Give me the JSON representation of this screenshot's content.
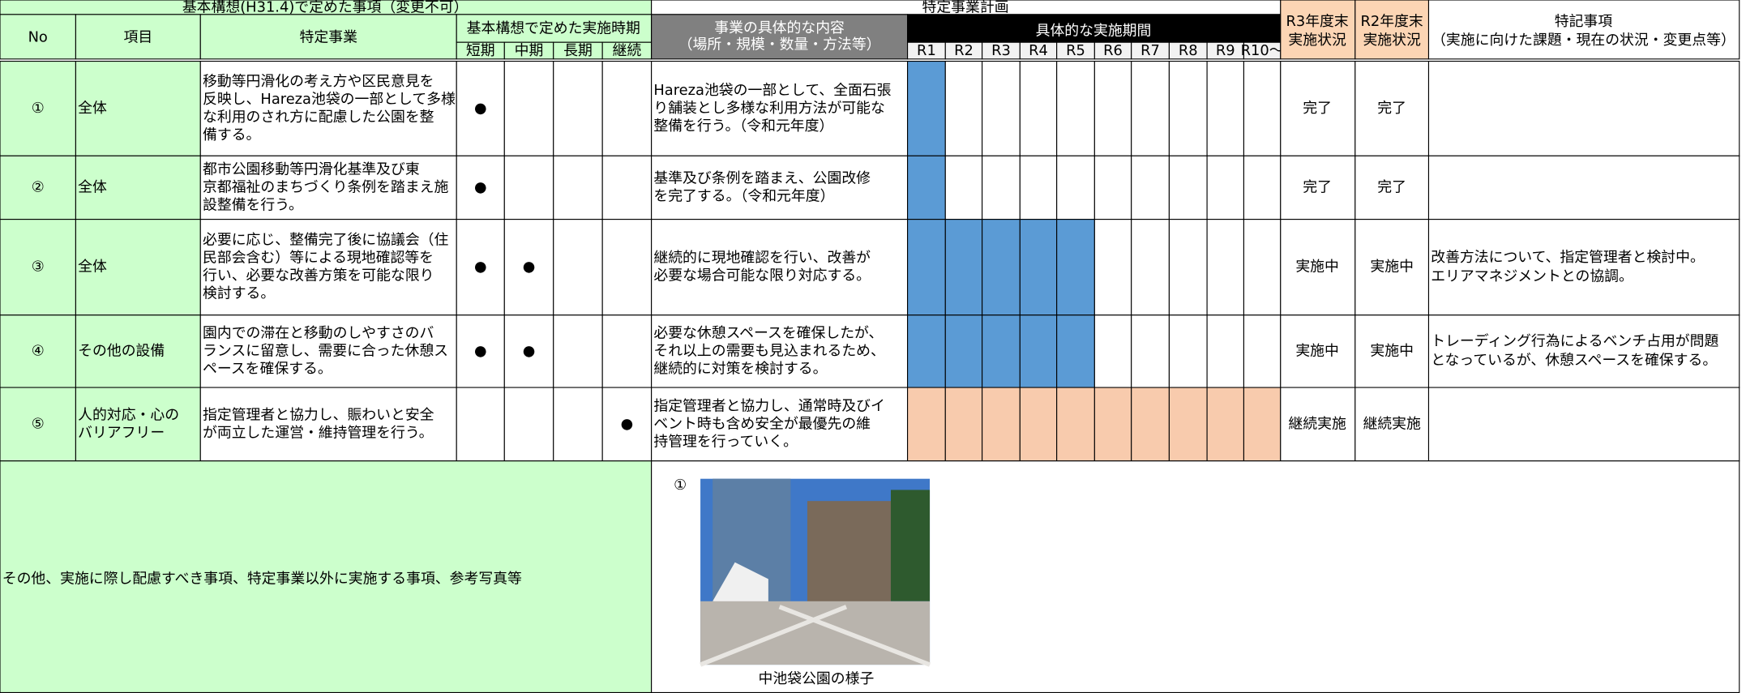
{
  "header": {
    "plan_title": "基本構想(H31.4)で定めた事項（変更不可）",
    "project_title": "特定事業計画",
    "no": "No",
    "item": "項目",
    "business": "特定事業",
    "timing_title": "基本構想で定めた実施時期",
    "timing": [
      "短期",
      "中期",
      "長期",
      "継続"
    ],
    "content": [
      "事業の具体的な内容",
      "（場所・規模・数量・方法等）"
    ],
    "period_title": "具体的な実施期間",
    "periods": [
      "R1",
      "R2",
      "R3",
      "R4",
      "R5",
      "R6",
      "R7",
      "R8",
      "R9",
      "R10～"
    ],
    "r3": [
      "R3年度末",
      "実施状況"
    ],
    "r2": [
      "R2年度末",
      "実施状況"
    ],
    "notes": [
      "特記事項",
      "（実施に向けた課題・現在の状況・変更点等）"
    ]
  },
  "rows": [
    {
      "no": "①",
      "item": [
        "全体"
      ],
      "business": [
        "移動等円滑化の考え方や区民意見を",
        "反映し、Hareza池袋の一部として多様",
        "な利用のされ方に配慮した公園を整",
        "備する。"
      ],
      "timing": [
        "●",
        null,
        null,
        null
      ],
      "content": [
        "Hareza池袋の一部として、全面石張",
        "り舗装とし多様な利用方法が可能な",
        "整備を行う。（令和元年度）"
      ],
      "r3": "完了",
      "r2": "完了"
    },
    {
      "no": "②",
      "item": [
        "全体"
      ],
      "business": [
        "都市公園移動等円滑化基準及び東",
        "京都福祉のまちづくり条例を踏まえ施",
        "設整備を行う。"
      ],
      "timing": [
        "●",
        null,
        null,
        null
      ],
      "content": [
        "基準及び条例を踏まえ、公園改修",
        "を完了する。（令和元年度）"
      ],
      "r3": "完了",
      "r2": "完了"
    },
    {
      "no": "③",
      "item": [
        "全体"
      ],
      "business": [
        "必要に応じ、整備完了後に協議会（住",
        "民部会含む）等による現地確認等を",
        "行い、必要な改善方策を可能な限り",
        "検討する。"
      ],
      "timing": [
        "●",
        "●",
        null,
        null
      ],
      "content": [
        "継続的に現地確認を行い、改善が",
        "必要な場合可能な限り対応する。"
      ],
      "r3": "実施中",
      "r2": "実施中",
      "notes": [
        "改善方法について、指定管理者と検討中。",
        "エリアマネジメントとの協調。"
      ]
    },
    {
      "no": "④",
      "item": [
        "その他の設備"
      ],
      "business": [
        "園内での滞在と移動のしやすさのバ",
        "ランスに留意し、需要に合った休憩ス",
        "ペースを確保する。"
      ],
      "timing": [
        "●",
        "●",
        null,
        null
      ],
      "content": [
        "必要な休憩スペースを確保したが、",
        "それ以上の需要も見込まれるため、",
        "継続的に対策を検討する。"
      ],
      "r3": "実施中",
      "r2": "実施中",
      "notes": [
        "トレーディング行為によるベンチ占用が問題",
        "となっているが、休憩スペースを確保する。"
      ]
    },
    {
      "no": "⑤",
      "item": [
        "人的対応・心の",
        "バリアフリー"
      ],
      "business": [
        "指定管理者と協力し、賑わいと安全",
        "が両立した運営・維持管理を行う。"
      ],
      "timing": [
        null,
        null,
        null,
        "●"
      ],
      "content": [
        "指定管理者と協力し、通常時及びイ",
        "ベント時も含め安全が最優先の維",
        "持管理を行っていく。"
      ],
      "r3": "継続実施",
      "r2": "継続実施"
    }
  ],
  "footer": {
    "label": "その他、実施に際し配慮すべき事項、特定事業以外に実施する事項、参考写真等",
    "photo_no": "①",
    "caption": "中池袋公園の様子"
  }
}
